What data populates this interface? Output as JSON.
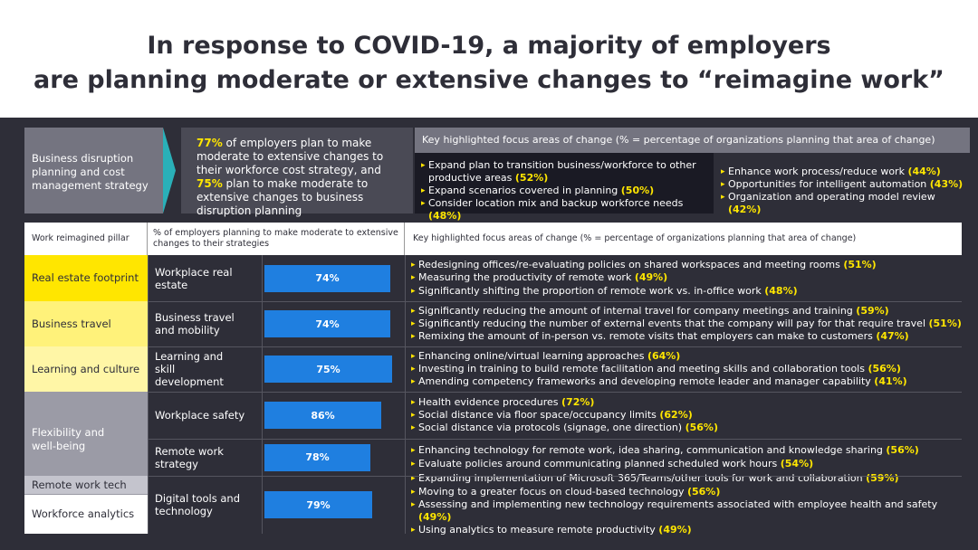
{
  "title": {
    "line1": "In response to COVID-19, a majority of employers",
    "line2": "are planning moderate or extensive changes to “reimagine work”"
  },
  "top": {
    "box_label": "Business disruption planning and cost management strategy",
    "stat": {
      "pct1": "77%",
      "text1": " of employers plan to make moderate to extensive changes to their workforce cost strategy, and ",
      "pct2": "75%",
      "text2": " plan to make moderate to extensive changes to business disruption planning"
    },
    "focus_header": "Key highlighted focus areas of change (% = percentage of organizations planning that area of change)",
    "focus_left": [
      {
        "text": "Expand plan to transition business/workforce to other productive areas ",
        "pct": "(52%)"
      },
      {
        "text": "Expand scenarios covered in planning ",
        "pct": "(50%)"
      },
      {
        "text": "Consider location mix and backup workforce needs ",
        "pct": "(48%)"
      }
    ],
    "focus_right": [
      {
        "text": "Enhance work process/reduce work ",
        "pct": "(44%)"
      },
      {
        "text": "Opportunities for intelligent automation ",
        "pct": "(43%)"
      },
      {
        "text": "Organization and operating model review ",
        "pct": "(42%)"
      }
    ]
  },
  "table": {
    "headers": {
      "pillar": "Work reimagined pillar",
      "pct": "% of employers planning to make moderate to extensive changes to their strategies",
      "focus": "Key highlighted focus areas of change (% = percentage of organizations planning that area of change)"
    },
    "pillars": [
      "Real estate footprint",
      "Business travel",
      "Learning and culture",
      "Flexibility and well-being",
      "Remote work tech",
      "Workforce analytics"
    ],
    "colors": {
      "yellow": "#ffe600",
      "pale_yellow": "#fff27a",
      "pale_yellow2": "#fff6a6",
      "grey_mid": "#9b9ba6",
      "grey_light": "#c4c4cd",
      "white": "#ffffff",
      "bar": "#1f7fe0"
    }
  },
  "chart_data": {
    "type": "bar",
    "categories": [
      "Workplace real estate",
      "Business travel and mobility",
      "Learning and skill development",
      "Workplace safety",
      "Remote work strategy",
      "Digital tools and technology"
    ],
    "values": [
      74,
      74,
      75,
      86,
      78,
      79
    ],
    "labels": [
      "74%",
      "74%",
      "75%",
      "86%",
      "78%",
      "79%"
    ],
    "focus": [
      [
        {
          "text": "Redesigning offices/re-evaluating policies on shared workspaces and meeting rooms ",
          "pct": "(51%)"
        },
        {
          "text": "Measuring the productivity of remote work ",
          "pct": "(49%)"
        },
        {
          "text": "Significantly shifting the proportion of remote work vs. in-office work ",
          "pct": "(48%)"
        }
      ],
      [
        {
          "text": "Significantly reducing the amount of internal travel for company meetings and training ",
          "pct": "(59%)"
        },
        {
          "text": "Significantly reducing the number of external events that the company will pay for that require travel ",
          "pct": "(51%)"
        },
        {
          "text": "Remixing the amount of in-person vs. remote visits that employers can make to customers ",
          "pct": "(47%)"
        }
      ],
      [
        {
          "text": "Enhancing online/virtual learning approaches ",
          "pct": "(64%)"
        },
        {
          "text": "Investing in training to build remote facilitation and meeting skills and collaboration tools ",
          "pct": "(56%)"
        },
        {
          "text": "Amending competency frameworks and developing remote leader and manager capability ",
          "pct": "(41%)"
        }
      ],
      [
        {
          "text": "Health evidence procedures ",
          "pct": "(72%)"
        },
        {
          "text": "Social distance via floor space/occupancy limits ",
          "pct": "(62%)"
        },
        {
          "text": "Social distance via protocols (signage, one direction) ",
          "pct": "(56%)"
        }
      ],
      [
        {
          "text": "Enhancing technology for remote work, idea sharing, communication and knowledge sharing ",
          "pct": "(56%)"
        },
        {
          "text": "Evaluate policies around communicating planned scheduled work hours ",
          "pct": "(54%)"
        }
      ],
      [
        {
          "text": "Expanding implementation of Microsoft 365/Teams/other tools for work and collaboration ",
          "pct": "(59%)"
        },
        {
          "text": "Moving to a greater focus on cloud-based technology ",
          "pct": "(56%)"
        },
        {
          "text": "Assessing and implementing new technology requirements associated with employee health and safety ",
          "pct": "(49%)"
        },
        {
          "text": "Using analytics to measure remote productivity ",
          "pct": "(49%)"
        }
      ]
    ]
  }
}
